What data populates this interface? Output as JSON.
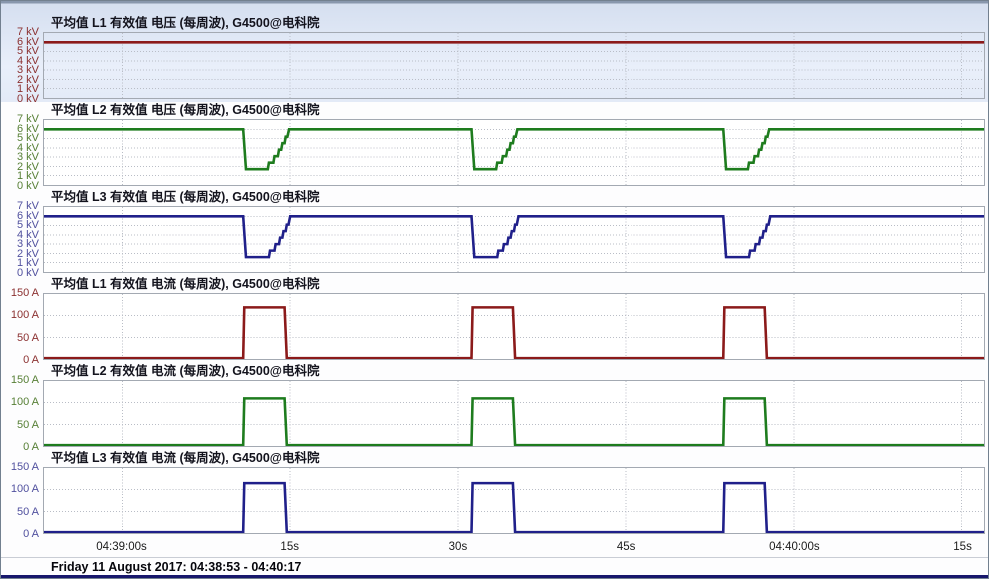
{
  "window": {
    "statusbar_text": "Friday 11 August 2017: 04:38:53 - 04:40:17"
  },
  "colors": {
    "grid": "#b9bdc6",
    "plot_border": "#a3a9b2",
    "selected_band": "#e3eaf7",
    "bottom_line": "#17176c",
    "l1": "#8b1a1a",
    "l2": "#1e7c1e",
    "l3": "#20208a"
  },
  "x_axis": {
    "time_range_s": 84,
    "ticks": [
      {
        "t": 7,
        "label": "04:39:00s"
      },
      {
        "t": 22,
        "label": "15s"
      },
      {
        "t": 37,
        "label": "30s"
      },
      {
        "t": 52,
        "label": "45s"
      },
      {
        "t": 67,
        "label": "04:40:00s"
      },
      {
        "t": 82,
        "label": "15s"
      }
    ]
  },
  "chart_data": [
    {
      "type": "line",
      "title": "平均值 L1 有效值 电压 (每周波), G4500@电科院",
      "unit": "kV",
      "ylim": [
        0,
        7
      ],
      "yticks": [
        7,
        6,
        5,
        4,
        3,
        2,
        1,
        0
      ],
      "line_color": "#8b1a1a",
      "label_color": "#8b3030",
      "selected": true,
      "points": [
        [
          0,
          6
        ],
        [
          84,
          6
        ]
      ]
    },
    {
      "type": "line",
      "title": "平均值 L2 有效值 电压 (每周波), G4500@电科院",
      "unit": "kV",
      "ylim": [
        0,
        7
      ],
      "yticks": [
        7,
        6,
        5,
        4,
        3,
        2,
        1,
        0
      ],
      "line_color": "#1e7c1e",
      "label_color": "#567f35",
      "selected": false,
      "points": [
        [
          0,
          6
        ],
        [
          17.8,
          6
        ],
        [
          18.05,
          1.7
        ],
        [
          20.0,
          1.7
        ],
        [
          20.1,
          2.4
        ],
        [
          20.5,
          2.4
        ],
        [
          20.6,
          3.1
        ],
        [
          20.9,
          3.1
        ],
        [
          21.0,
          3.8
        ],
        [
          21.2,
          3.8
        ],
        [
          21.3,
          4.5
        ],
        [
          21.5,
          4.5
        ],
        [
          21.6,
          5.2
        ],
        [
          21.75,
          5.2
        ],
        [
          21.9,
          6
        ],
        [
          38.2,
          6
        ],
        [
          38.45,
          1.7
        ],
        [
          40.4,
          1.7
        ],
        [
          40.5,
          2.4
        ],
        [
          40.9,
          2.4
        ],
        [
          41.0,
          3.1
        ],
        [
          41.3,
          3.1
        ],
        [
          41.4,
          3.8
        ],
        [
          41.6,
          3.8
        ],
        [
          41.7,
          4.5
        ],
        [
          41.9,
          4.5
        ],
        [
          42.0,
          5.2
        ],
        [
          42.15,
          5.2
        ],
        [
          42.3,
          6
        ],
        [
          60.7,
          6
        ],
        [
          60.95,
          1.7
        ],
        [
          62.9,
          1.7
        ],
        [
          63.0,
          2.4
        ],
        [
          63.4,
          2.4
        ],
        [
          63.5,
          3.1
        ],
        [
          63.8,
          3.1
        ],
        [
          63.9,
          3.8
        ],
        [
          64.1,
          3.8
        ],
        [
          64.2,
          4.5
        ],
        [
          64.4,
          4.5
        ],
        [
          64.5,
          5.2
        ],
        [
          64.65,
          5.2
        ],
        [
          64.8,
          6
        ],
        [
          84,
          6
        ]
      ]
    },
    {
      "type": "line",
      "title": "平均值 L3 有效值 电压 (每周波), G4500@电科院",
      "unit": "kV",
      "ylim": [
        0,
        7
      ],
      "yticks": [
        7,
        6,
        5,
        4,
        3,
        2,
        1,
        0
      ],
      "line_color": "#20208a",
      "label_color": "#50509e",
      "selected": false,
      "points": [
        [
          0,
          6
        ],
        [
          17.8,
          6
        ],
        [
          18.05,
          1.6
        ],
        [
          20.1,
          1.6
        ],
        [
          20.2,
          2.3
        ],
        [
          20.6,
          2.3
        ],
        [
          20.7,
          3.0
        ],
        [
          21.0,
          3.0
        ],
        [
          21.1,
          3.7
        ],
        [
          21.3,
          3.7
        ],
        [
          21.4,
          4.4
        ],
        [
          21.6,
          4.4
        ],
        [
          21.7,
          5.1
        ],
        [
          21.85,
          5.1
        ],
        [
          22.0,
          6
        ],
        [
          38.2,
          6
        ],
        [
          38.45,
          1.6
        ],
        [
          40.5,
          1.6
        ],
        [
          40.6,
          2.3
        ],
        [
          41.0,
          2.3
        ],
        [
          41.1,
          3.0
        ],
        [
          41.4,
          3.0
        ],
        [
          41.5,
          3.7
        ],
        [
          41.7,
          3.7
        ],
        [
          41.8,
          4.4
        ],
        [
          42.0,
          4.4
        ],
        [
          42.1,
          5.1
        ],
        [
          42.25,
          5.1
        ],
        [
          42.4,
          6
        ],
        [
          60.7,
          6
        ],
        [
          60.95,
          1.6
        ],
        [
          63.0,
          1.6
        ],
        [
          63.1,
          2.3
        ],
        [
          63.5,
          2.3
        ],
        [
          63.6,
          3.0
        ],
        [
          63.9,
          3.0
        ],
        [
          64.0,
          3.7
        ],
        [
          64.2,
          3.7
        ],
        [
          64.3,
          4.4
        ],
        [
          64.5,
          4.4
        ],
        [
          64.6,
          5.1
        ],
        [
          64.75,
          5.1
        ],
        [
          64.9,
          6
        ],
        [
          84,
          6
        ]
      ]
    },
    {
      "type": "line",
      "title": "平均值 L1 有效值 电流 (每周波), G4500@电科院",
      "unit": "A",
      "ylim": [
        0,
        150
      ],
      "yticks": [
        150,
        100,
        50,
        0
      ],
      "line_color": "#8b1a1a",
      "label_color": "#8b3030",
      "selected": false,
      "points": [
        [
          0,
          2
        ],
        [
          17.8,
          2
        ],
        [
          17.9,
          119
        ],
        [
          21.5,
          119
        ],
        [
          21.7,
          2
        ],
        [
          38.2,
          2
        ],
        [
          38.3,
          119
        ],
        [
          41.9,
          119
        ],
        [
          42.1,
          2
        ],
        [
          60.7,
          2
        ],
        [
          60.8,
          119
        ],
        [
          64.4,
          119
        ],
        [
          64.6,
          2
        ],
        [
          84,
          2
        ]
      ]
    },
    {
      "type": "line",
      "title": "平均值 L2 有效值 电流 (每周波), G4500@电科院",
      "unit": "A",
      "ylim": [
        0,
        150
      ],
      "yticks": [
        150,
        100,
        50,
        0
      ],
      "line_color": "#1e7c1e",
      "label_color": "#567f35",
      "selected": false,
      "points": [
        [
          0,
          2
        ],
        [
          17.8,
          2
        ],
        [
          17.9,
          110
        ],
        [
          21.5,
          110
        ],
        [
          21.7,
          2
        ],
        [
          38.2,
          2
        ],
        [
          38.3,
          110
        ],
        [
          41.9,
          110
        ],
        [
          42.1,
          2
        ],
        [
          60.7,
          2
        ],
        [
          60.8,
          110
        ],
        [
          64.4,
          110
        ],
        [
          64.6,
          2
        ],
        [
          84,
          2
        ]
      ]
    },
    {
      "type": "line",
      "title": "平均值 L3 有效值 电流 (每周波), G4500@电科院",
      "unit": "A",
      "ylim": [
        0,
        150
      ],
      "yticks": [
        150,
        100,
        50,
        0
      ],
      "line_color": "#20208a",
      "label_color": "#50509e",
      "selected": false,
      "points": [
        [
          0,
          2
        ],
        [
          17.8,
          2
        ],
        [
          17.9,
          115
        ],
        [
          21.5,
          115
        ],
        [
          21.7,
          2
        ],
        [
          38.2,
          2
        ],
        [
          38.3,
          115
        ],
        [
          41.9,
          115
        ],
        [
          42.1,
          2
        ],
        [
          60.7,
          2
        ],
        [
          60.8,
          115
        ],
        [
          64.4,
          115
        ],
        [
          64.6,
          2
        ],
        [
          84,
          2
        ]
      ]
    }
  ]
}
